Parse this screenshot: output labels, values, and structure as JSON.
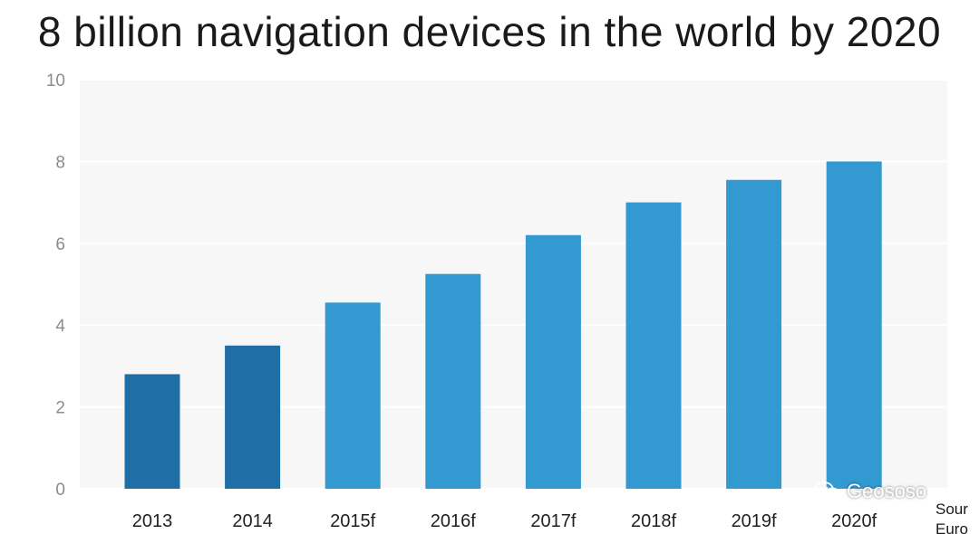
{
  "chart_data": {
    "type": "bar",
    "title": "8 billion navigation devices in the world by 2020",
    "xlabel": "",
    "ylabel": "",
    "ylim": [
      0,
      10
    ],
    "yticks": [
      0,
      2,
      4,
      6,
      8,
      10
    ],
    "grid": true,
    "categories": [
      "2013",
      "2014",
      "2015f",
      "2016f",
      "2017f",
      "2018f",
      "2019f",
      "2020f"
    ],
    "values": [
      2.8,
      3.5,
      4.55,
      5.25,
      6.2,
      7.0,
      7.55,
      8.0
    ],
    "bar_colors": [
      "#1f6ea6",
      "#1f6ea6",
      "#3399d1",
      "#3399d1",
      "#3399d1",
      "#3399d1",
      "#3399d1",
      "#3399d1"
    ]
  },
  "colors": {
    "plot_background": "#f7f7f7",
    "gridline": "#ffffff",
    "tick_text": "#8c8c8c"
  },
  "watermark": {
    "icon": "wechat-icon",
    "text": "Geososo"
  },
  "source_note": {
    "line1": "Sour",
    "line2": "Euro"
  }
}
